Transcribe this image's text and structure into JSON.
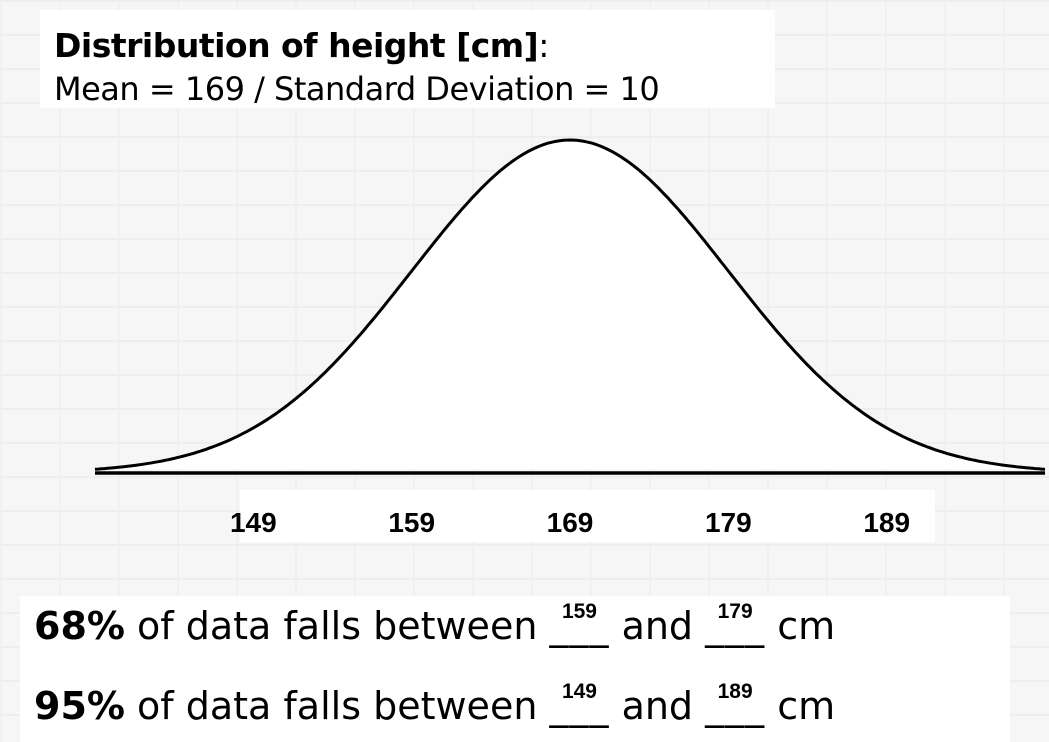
{
  "title": {
    "main": "Distribution of height [cm]",
    "colon": ":",
    "subtitle": "Mean =  169 / Standard Deviation = 10"
  },
  "chart_data": {
    "type": "line",
    "title": "Distribution of height [cm]",
    "distribution": "normal",
    "mean": 169,
    "std_dev": 10,
    "xlim": [
      139,
      199
    ],
    "tick_labels": [
      "149",
      "159",
      "169",
      "179",
      "189"
    ],
    "tick_values": [
      149,
      159,
      169,
      179,
      189
    ],
    "grid": false
  },
  "facts": [
    {
      "percent": "68%",
      "text_before": " of data falls between ",
      "low_fill": "159",
      "mid_text": " and ",
      "high_fill": "179",
      "unit": " cm",
      "blank": "___"
    },
    {
      "percent": "95%",
      "text_before": " of data falls between ",
      "low_fill": "149",
      "mid_text": " and ",
      "high_fill": "189",
      "unit": " cm",
      "blank": "___"
    }
  ]
}
